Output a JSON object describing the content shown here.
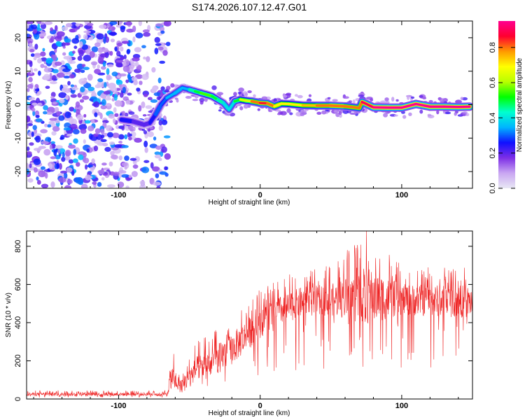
{
  "chart_data": [
    {
      "type": "heatmap",
      "title": "S174.2026.107.12.47.G01",
      "xlabel": "Height of straight line (km)",
      "ylabel": "Frequency (Hz)",
      "xlim": [
        -165,
        150
      ],
      "ylim": [
        -25,
        25
      ],
      "x_ticks": [
        "-100",
        "0",
        "100"
      ],
      "y_ticks": [
        "-20",
        "-10",
        "0",
        "10",
        "20"
      ],
      "colorbar": {
        "label": "Normalized spectral amplitude",
        "range": [
          0,
          0.95
        ],
        "ticks": [
          "0.0",
          "0.2",
          "0.4",
          "0.6",
          "0.8"
        ],
        "colors": [
          "#e8e8f4",
          "#c9a6f2",
          "#7d2ee6",
          "#1010ff",
          "#00b4ff",
          "#00ffd0",
          "#00ff00",
          "#b8ff00",
          "#ffff00",
          "#ff9900",
          "#ff0030",
          "#ff0090"
        ]
      },
      "ridge": {
        "x": [
          -98,
          -90,
          -82,
          -78,
          -74,
          -70,
          -66,
          -60,
          -55,
          -50,
          -46,
          -42,
          -38,
          -34,
          -30,
          -26,
          -22,
          -18,
          -14,
          -10,
          -6,
          0,
          5,
          10,
          15,
          20,
          30,
          40,
          50,
          60,
          70,
          72,
          80,
          90,
          100,
          110,
          120,
          130,
          140,
          148
        ],
        "y": [
          -4.5,
          -5,
          -6,
          -5.5,
          -3,
          0,
          2,
          3.5,
          5,
          4.5,
          4,
          3.5,
          3,
          2.5,
          1.5,
          0.5,
          -1.5,
          1,
          1.5,
          1.2,
          1,
          0.5,
          0.4,
          -0.5,
          0.3,
          0.2,
          -0.2,
          -0.3,
          -0.3,
          -0.5,
          -1,
          0.8,
          -0.8,
          -0.9,
          -0.9,
          0.2,
          -0.6,
          -0.6,
          -0.7,
          -0.6
        ],
        "amplitude": [
          0.3,
          0.25,
          0.2,
          0.25,
          0.35,
          0.3,
          0.35,
          0.4,
          0.35,
          0.45,
          0.5,
          0.55,
          0.6,
          0.55,
          0.5,
          0.45,
          0.4,
          0.5,
          0.7,
          0.65,
          0.8,
          0.85,
          0.85,
          0.8,
          0.7,
          0.7,
          0.75,
          0.8,
          0.85,
          0.8,
          0.8,
          0.9,
          0.95,
          0.95,
          0.95,
          0.95,
          0.95,
          0.95,
          0.95,
          0.95
        ]
      },
      "noise_region_x": [
        -165,
        -75
      ],
      "noise_amplitude_range": [
        0.05,
        0.35
      ]
    },
    {
      "type": "line",
      "xlabel": "Height of straight line (km)",
      "ylabel": "SNR (10 * v/v)",
      "xlim": [
        -165,
        150
      ],
      "ylim": [
        0,
        880
      ],
      "x_ticks": [
        "-100",
        "0",
        "100"
      ],
      "y_ticks": [
        "0",
        "200",
        "400",
        "600",
        "800"
      ],
      "line_color": "#ee2222",
      "envelope": [
        {
          "x": -165,
          "mean": 25,
          "max": 45
        },
        {
          "x": -66,
          "mean": 25,
          "max": 45
        },
        {
          "x": -63,
          "mean": 120,
          "max": 270
        },
        {
          "x": -55,
          "mean": 70,
          "max": 160
        },
        {
          "x": -45,
          "mean": 160,
          "max": 300
        },
        {
          "x": -35,
          "mean": 190,
          "max": 350
        },
        {
          "x": -20,
          "mean": 260,
          "max": 440
        },
        {
          "x": -10,
          "mean": 330,
          "max": 520
        },
        {
          "x": 0,
          "mean": 400,
          "max": 580
        },
        {
          "x": 10,
          "mean": 450,
          "max": 620
        },
        {
          "x": 20,
          "mean": 480,
          "max": 650
        },
        {
          "x": 30,
          "mean": 510,
          "max": 690
        },
        {
          "x": 50,
          "mean": 520,
          "max": 700
        },
        {
          "x": 75,
          "mean": 540,
          "max": 880
        },
        {
          "x": 100,
          "mean": 520,
          "max": 700
        },
        {
          "x": 150,
          "mean": 510,
          "max": 700
        }
      ]
    }
  ]
}
